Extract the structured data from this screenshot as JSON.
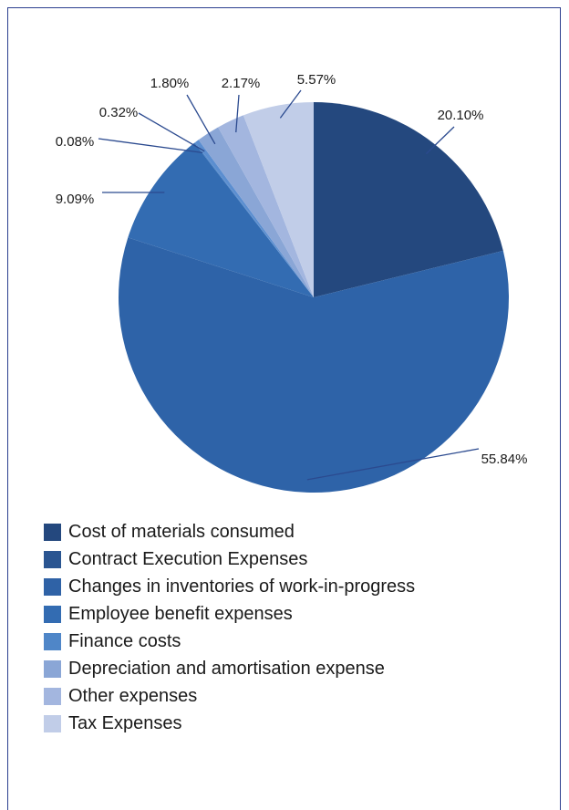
{
  "chart_data": {
    "type": "pie",
    "title": "",
    "slices": [
      {
        "label": "Cost of materials consumed",
        "value": 20.1,
        "value_label": "20.10%",
        "color": "#24487e"
      },
      {
        "label": "Contract Execution Expenses",
        "value": 0.0,
        "value_label": "",
        "color": "#2a5591"
      },
      {
        "label": "Changes in inventories of work-in-progress",
        "value": 0.0,
        "value_label": "",
        "color": "#2f62a6"
      },
      {
        "label": "Employee benefit expenses",
        "value": 55.84,
        "value_label": "55.84%",
        "color": "#2e63a8"
      },
      {
        "label": "Finance costs",
        "value": 9.09,
        "value_label": "9.09%",
        "color": "#336cb2"
      },
      {
        "label": "Finance costs",
        "value": 0.08,
        "value_label": "0.08%",
        "color": "#4f86c8"
      },
      {
        "label": "Finance costs",
        "value": 0.32,
        "value_label": "0.32%",
        "color": "#5b8ed0"
      },
      {
        "label": "Depreciation and amortisation expense",
        "value": 1.8,
        "value_label": "1.80%",
        "color": "#8aa6d6"
      },
      {
        "label": "Other expenses",
        "value": 2.17,
        "value_label": "2.17%",
        "color": "#a3b6df"
      },
      {
        "label": "Tax Expenses",
        "value": 5.57,
        "value_label": "5.57%",
        "color": "#c1cde8"
      }
    ],
    "legend": {
      "position": "bottom",
      "entries": [
        {
          "label": "Cost of materials consumed",
          "color": "#24487e"
        },
        {
          "label": "Contract Execution Expenses",
          "color": "#2a5591"
        },
        {
          "label": "Changes in inventories of work-in-progress",
          "color": "#2f62a6"
        },
        {
          "label": "Employee benefit expenses",
          "color": "#336cb2"
        },
        {
          "label": "Finance costs",
          "color": "#4f86c8"
        },
        {
          "label": "Depreciation and amortisation expense",
          "color": "#8aa6d6"
        },
        {
          "label": "Other expenses",
          "color": "#a3b6df"
        },
        {
          "label": "Tax Expenses",
          "color": "#c1cde8"
        }
      ]
    }
  }
}
